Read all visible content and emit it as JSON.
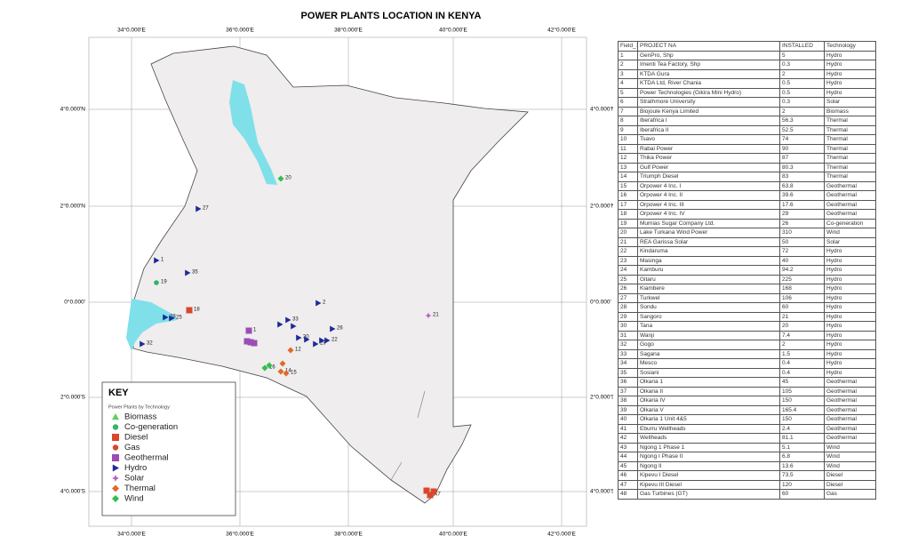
{
  "title": "POWER PLANTS LOCATION IN KENYA",
  "map": {
    "lon_labels": [
      "34°0.000'E",
      "36°0.000'E",
      "38°0.000'E",
      "40°0.000'E",
      "42°0.000'E"
    ],
    "lat_labels": [
      "4°0.000'N",
      "2°0.000'N",
      "0°0.000'",
      "2°0.000'S",
      "4°0.000'S"
    ],
    "point_labels": [
      "20",
      "27",
      "1",
      "35",
      "19",
      "2",
      "21",
      "28",
      "25",
      "18",
      "33",
      "26",
      "30",
      "22",
      "29",
      "32",
      "1",
      "12",
      "16",
      "14",
      "15",
      "47"
    ]
  },
  "key": {
    "title": "KEY",
    "subtitle": "Power Plants by Technology",
    "items": [
      {
        "name": "Biomass",
        "color": "#5fcf5f",
        "marker": "triangle"
      },
      {
        "name": "Co-generation",
        "color": "#34b36a",
        "marker": "circle"
      },
      {
        "name": "Diesel",
        "color": "#d9462b",
        "marker": "square"
      },
      {
        "name": "Gas",
        "color": "#d9462b",
        "marker": "circle"
      },
      {
        "name": "Geothermal",
        "color": "#9b4db5",
        "marker": "square"
      },
      {
        "name": "Hydro",
        "color": "#1c2a9c",
        "marker": "arrow"
      },
      {
        "name": "Solar",
        "color": "#b85cc7",
        "marker": "star"
      },
      {
        "name": "Thermal",
        "color": "#e06a2a",
        "marker": "diamond"
      },
      {
        "name": "Wind",
        "color": "#2fbf4f",
        "marker": "diamond"
      }
    ]
  },
  "table": {
    "header": [
      "Field_1",
      "PROJECT NA",
      "INSTALLED",
      "Technology"
    ],
    "rows": [
      [
        "1",
        "GenPro, Shp",
        "5",
        "Hydro"
      ],
      [
        "2",
        "Imenti Tea Factory, Shp",
        "0.3",
        "Hydro"
      ],
      [
        "3",
        "KTDA Gura",
        "2",
        "Hydro"
      ],
      [
        "4",
        "KTDA Ltd, River Chania",
        "0.5",
        "Hydro"
      ],
      [
        "5",
        "Power Technologies (Gikira Mini Hydro)",
        "0.5",
        "Hydro"
      ],
      [
        "6",
        "Strathmore University",
        "0.3",
        "Solar"
      ],
      [
        "7",
        "Biojoule Kenya Limited",
        "2",
        "Biomass"
      ],
      [
        "8",
        "Iberafrica I",
        "56.3",
        "Thermal"
      ],
      [
        "9",
        "Iberafrica II",
        "52.5",
        "Thermal"
      ],
      [
        "10",
        "Tsavo",
        "74",
        "Thermal"
      ],
      [
        "11",
        "Rabai Power",
        "90",
        "Thermal"
      ],
      [
        "12",
        "Thika Power",
        "87",
        "Thermal"
      ],
      [
        "13",
        "Gulf Power",
        "80.3",
        "Thermal"
      ],
      [
        "14",
        "Triumph Diesel",
        "83",
        "Thermal"
      ],
      [
        "15",
        "Orpower 4 Inc. I",
        "63.8",
        "Geothermal"
      ],
      [
        "16",
        "Orpower 4 Inc. II",
        "39.6",
        "Geothermal"
      ],
      [
        "17",
        "Orpower 4 Inc. III",
        "17.6",
        "Geothermal"
      ],
      [
        "18",
        "Orpower 4 Inc. IV",
        "29",
        "Geothermal"
      ],
      [
        "19",
        "Mumias Sugar Company Ltd.",
        "26",
        "Co-generation"
      ],
      [
        "20",
        "Lake Turkana Wind Power",
        "310",
        "Wind"
      ],
      [
        "21",
        "REA Garissa Solar",
        "50",
        "Solar"
      ],
      [
        "22",
        "Kindaruma",
        "72",
        "Hydro"
      ],
      [
        "23",
        "Masinga",
        "40",
        "Hydro"
      ],
      [
        "24",
        "Kamburu",
        "94.2",
        "Hydro"
      ],
      [
        "25",
        "Gitaru",
        "225",
        "Hydro"
      ],
      [
        "26",
        "Kiambere",
        "168",
        "Hydro"
      ],
      [
        "27",
        "Turkwel",
        "106",
        "Hydro"
      ],
      [
        "28",
        "Sondu",
        "60",
        "Hydro"
      ],
      [
        "29",
        "Sangoro",
        "21",
        "Hydro"
      ],
      [
        "30",
        "Tana",
        "20",
        "Hydro"
      ],
      [
        "31",
        "Wanji",
        "7.4",
        "Hydro"
      ],
      [
        "32",
        "Gogo",
        "2",
        "Hydro"
      ],
      [
        "33",
        "Sagana",
        "1.5",
        "Hydro"
      ],
      [
        "34",
        "Mesco",
        "0.4",
        "Hydro"
      ],
      [
        "35",
        "Sosiani",
        "0.4",
        "Hydro"
      ],
      [
        "36",
        "Olkaria 1",
        "45",
        "Geothermal"
      ],
      [
        "37",
        "Olkaria II",
        "105",
        "Geothermal"
      ],
      [
        "38",
        "Olkaria IV",
        "150",
        "Geothermal"
      ],
      [
        "39",
        "Olkaria V",
        "165.4",
        "Geothermal"
      ],
      [
        "40",
        "Olkaria 1 Unit 4&5",
        "150",
        "Geothermal"
      ],
      [
        "41",
        "Eburru Wellheads",
        "2.4",
        "Geothermal"
      ],
      [
        "42",
        "Wellheads",
        "81.1",
        "Geothermal"
      ],
      [
        "43",
        "Ngong 1 Phase 1",
        "5.1",
        "Wind"
      ],
      [
        "44",
        "Ngong I Phase II",
        "6.8",
        "Wind"
      ],
      [
        "45",
        "Ngong II",
        "13.6",
        "Wind"
      ],
      [
        "46",
        "Kipevu I Diesel",
        "73.5",
        "Diesel"
      ],
      [
        "47",
        "Kipevu III Diesel",
        "120",
        "Diesel"
      ],
      [
        "48",
        "Gas Turbines (GT)",
        "60",
        "Gas"
      ]
    ]
  }
}
